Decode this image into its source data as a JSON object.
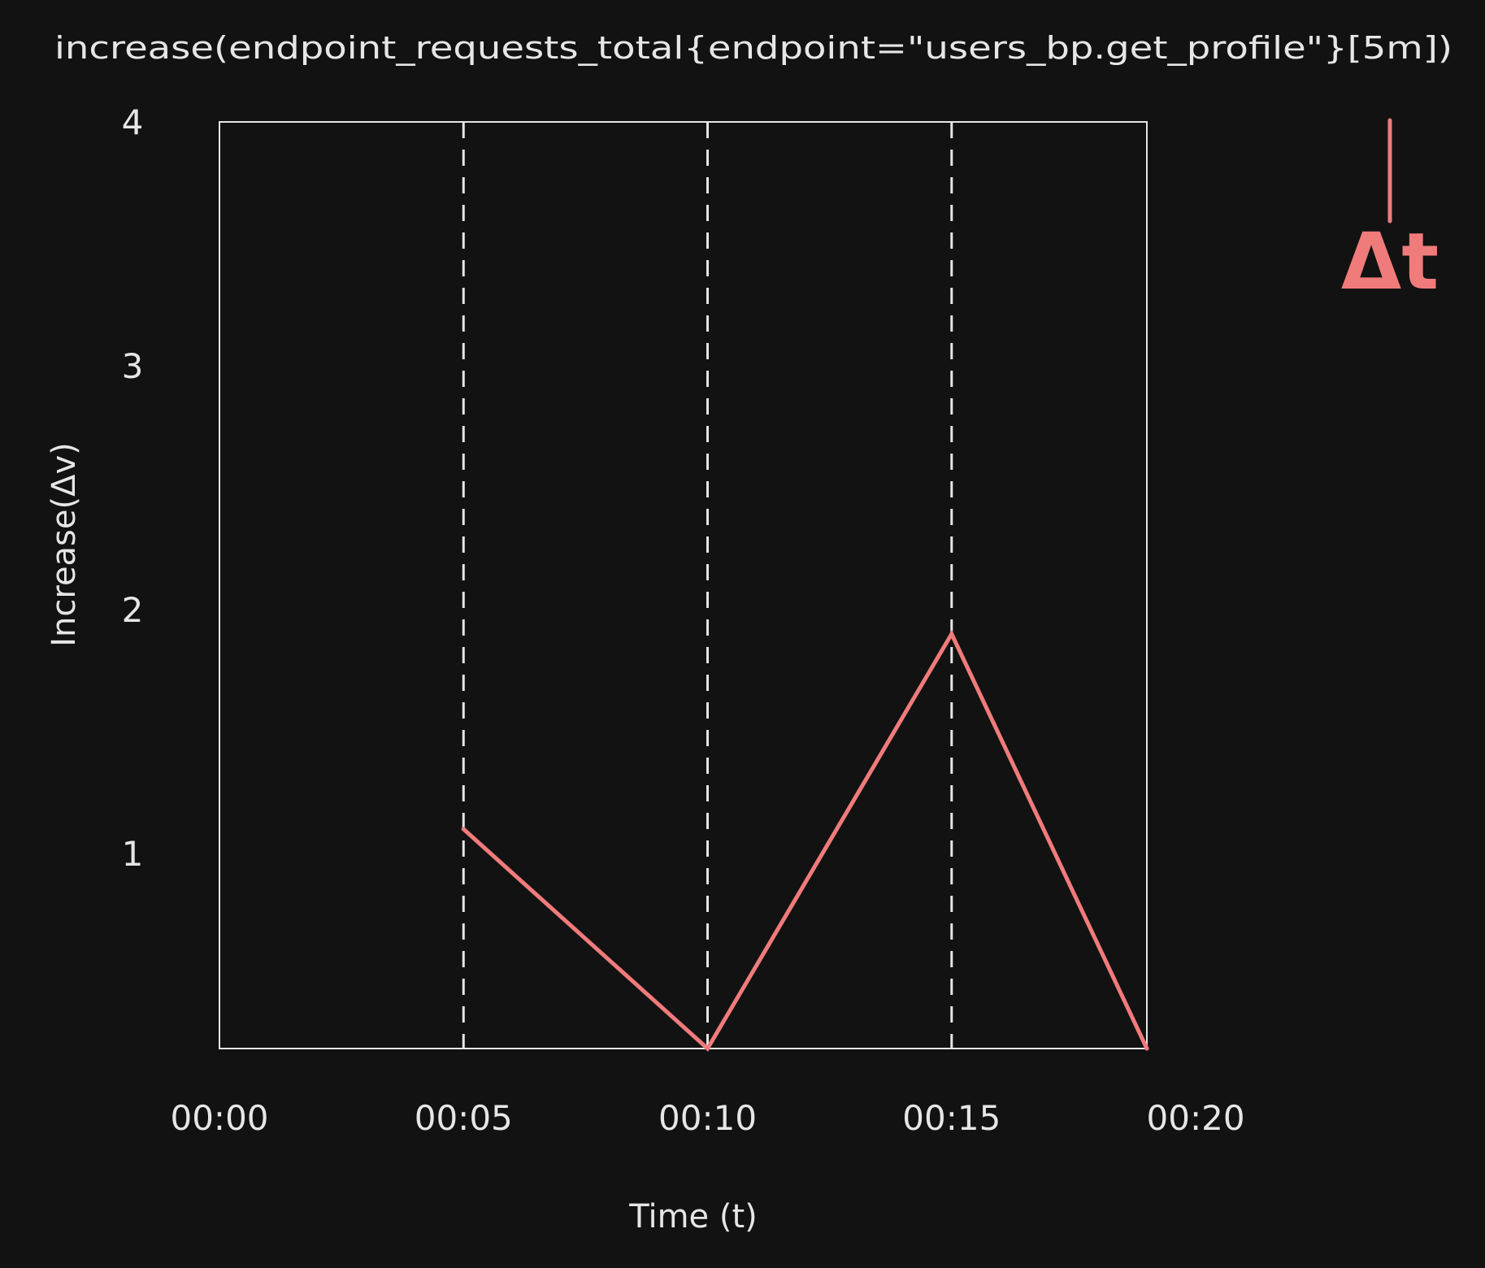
{
  "chart_data": {
    "type": "line",
    "title": "increase(endpoint_requests_total{endpoint=\"users_bp.get_profile\"}[5m])",
    "xlabel": "Time (t)",
    "ylabel": "Increase(Δv)",
    "x_ticks": [
      "00:00",
      "00:05",
      "00:10",
      "00:15",
      "00:20"
    ],
    "y_ticks": [
      1,
      2,
      3,
      4
    ],
    "xlim_minutes": [
      0,
      19
    ],
    "ylim": [
      0.2,
      4
    ],
    "grid": "vertical dashed lines at 00:05, 00:10, 00:15",
    "series": [
      {
        "x": [
          "00:05",
          "00:10",
          "00:15",
          "00:19"
        ],
        "values": [
          1.1,
          0.2,
          1.9,
          0.2
        ]
      }
    ],
    "annotation": {
      "text": "Δt",
      "marker": "vertical tick mark above the text, right of the plot"
    }
  },
  "colors": {
    "background": "#121212",
    "foreground": "#e6e6e6",
    "line": "#f07b7b",
    "annotation": "#f07b7b"
  }
}
